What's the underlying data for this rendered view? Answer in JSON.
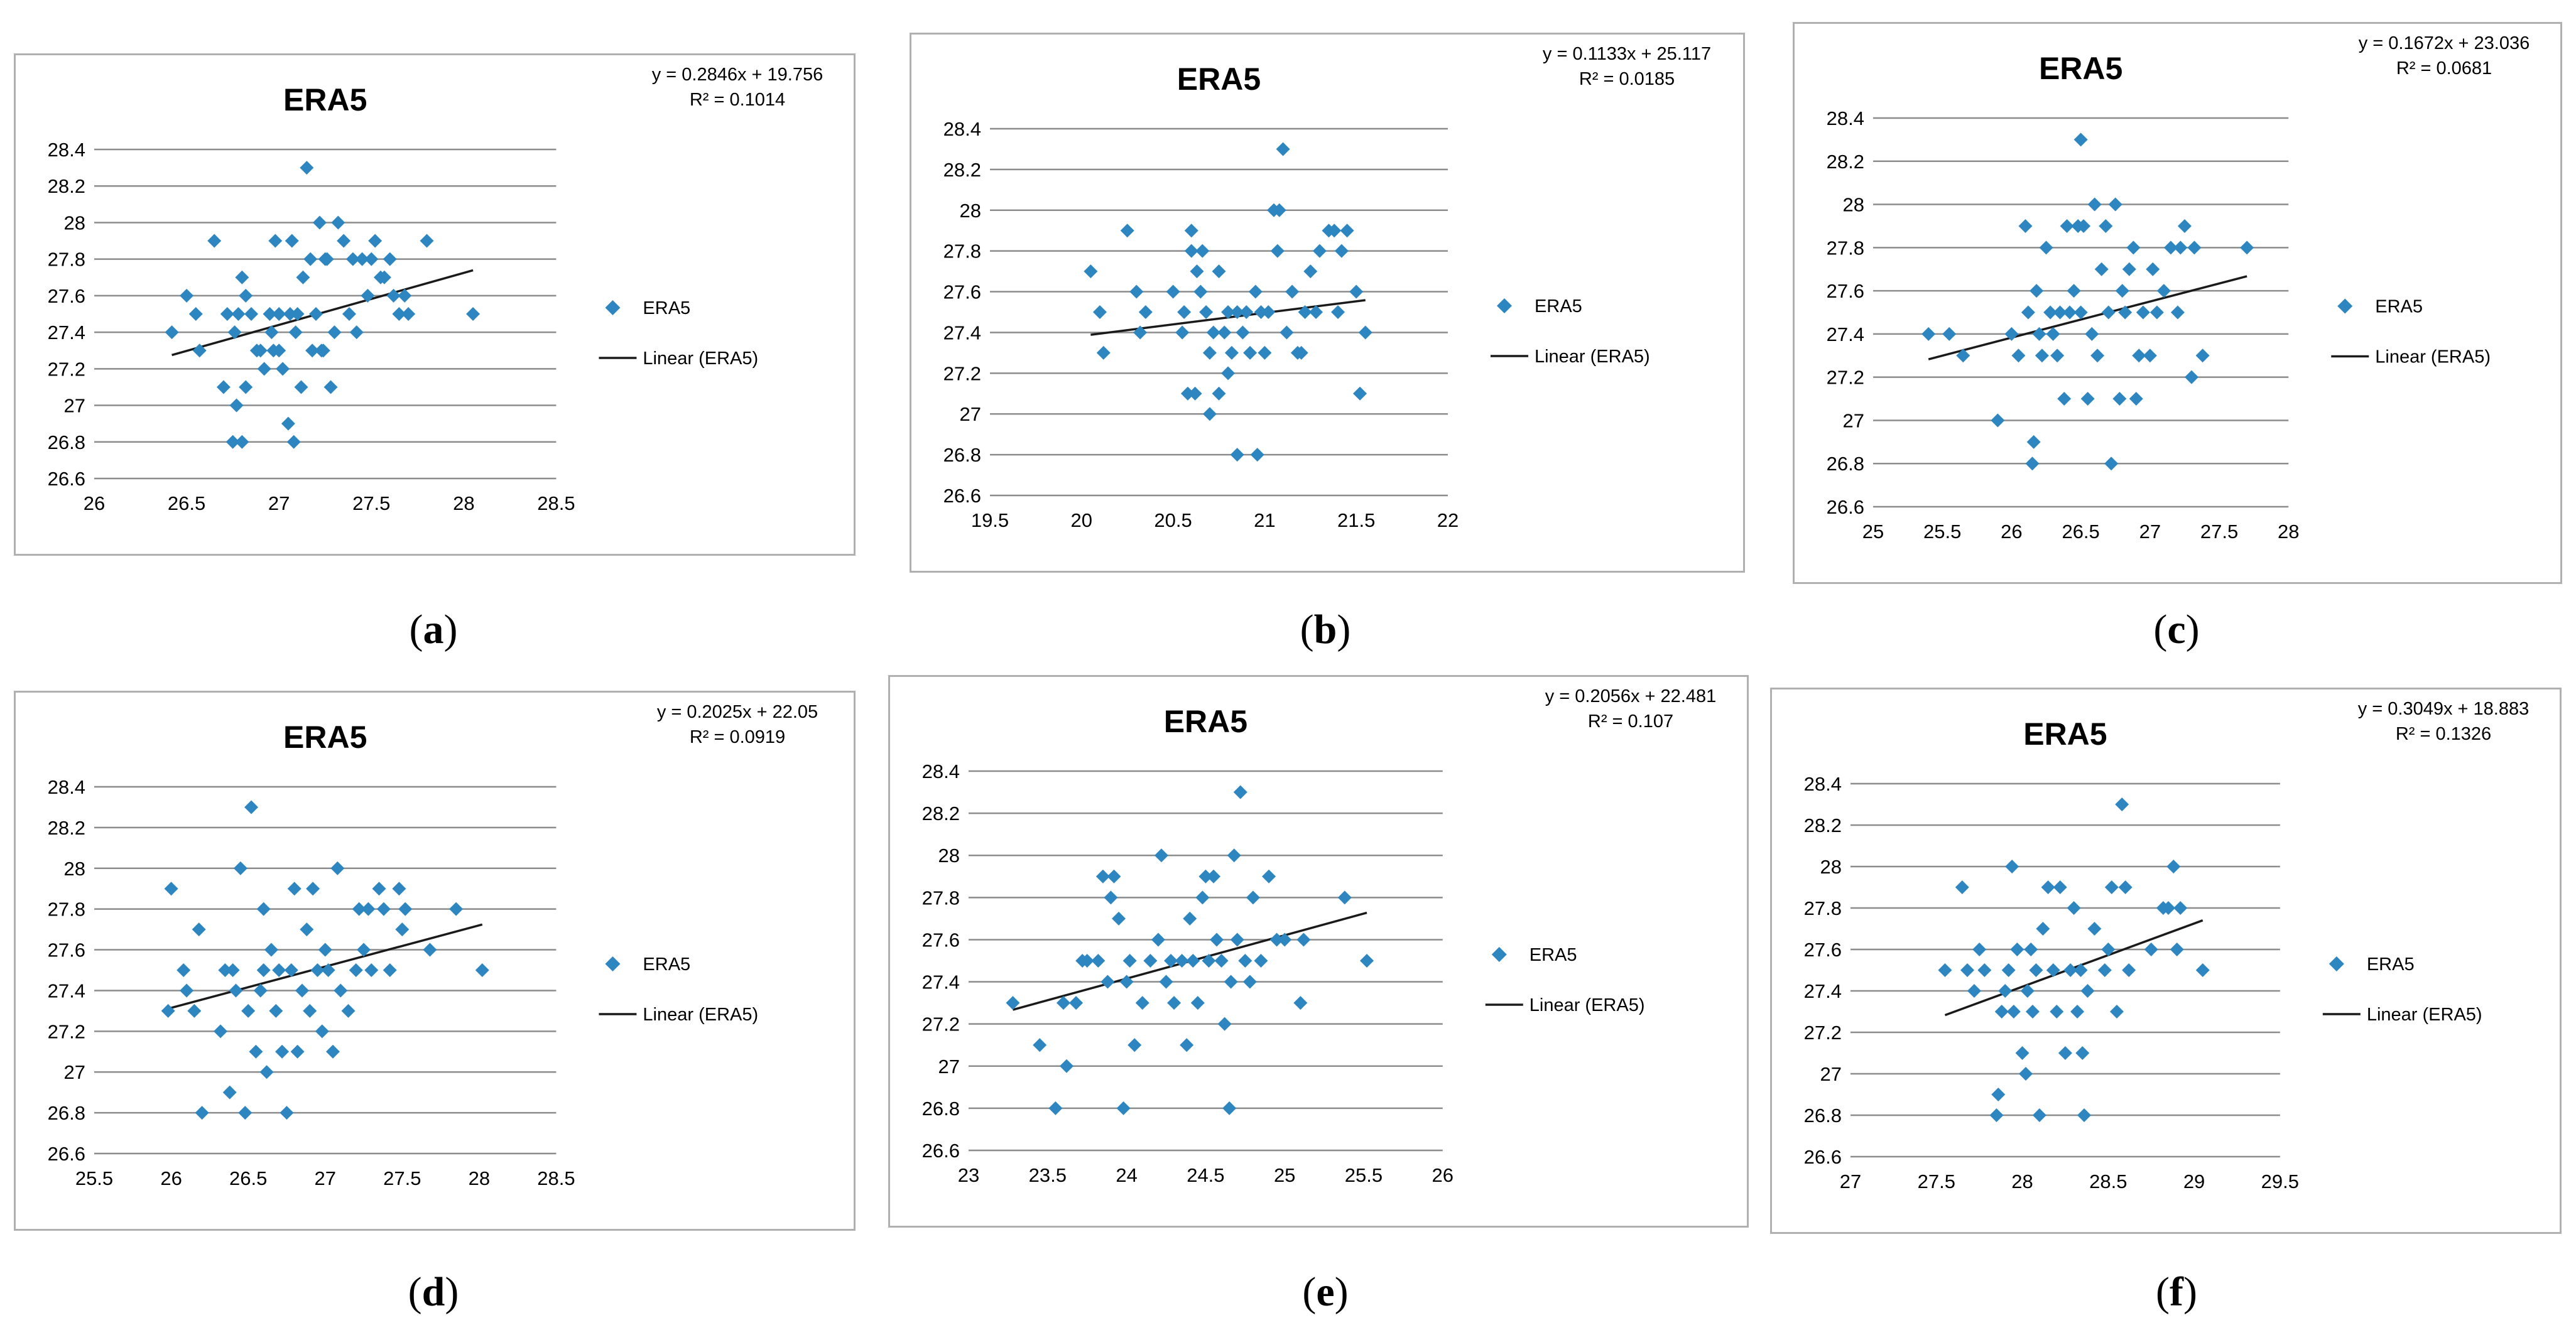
{
  "chart_data": [
    {
      "panel_label": "a",
      "type": "scatter",
      "title": "ERA5",
      "equation": "y = 0.2846x + 19.756",
      "r_squared": "R² = 0.1014",
      "legend": {
        "series": "ERA5",
        "trend": "Linear (ERA5)"
      },
      "color": "#2E86C1",
      "xlim": [
        26,
        28.5
      ],
      "ylim": [
        26.6,
        28.4
      ],
      "x_ticks": [
        "26",
        "26.5",
        "27",
        "27.5",
        "28",
        "28.5"
      ],
      "y_ticks": [
        "26.6",
        "26.8",
        "27",
        "27.2",
        "27.4",
        "27.6",
        "27.8",
        "28",
        "28.2",
        "28.4"
      ],
      "trend": {
        "slope": 0.2846,
        "intercept": 19.756,
        "x_range": [
          26.42,
          28.05
        ]
      },
      "x": [
        26.42,
        26.5,
        26.55,
        26.57,
        26.65,
        26.7,
        26.72,
        26.75,
        26.76,
        26.77,
        26.78,
        26.8,
        26.8,
        26.82,
        26.82,
        26.85,
        26.88,
        26.9,
        26.92,
        26.95,
        26.96,
        26.97,
        26.98,
        27.0,
        27.0,
        27.02,
        27.05,
        27.06,
        27.07,
        27.08,
        27.09,
        27.1,
        27.12,
        27.13,
        27.15,
        27.17,
        27.18,
        27.2,
        27.22,
        27.23,
        27.24,
        27.25,
        27.26,
        27.28,
        27.3,
        27.32,
        27.35,
        27.38,
        27.4,
        27.42,
        27.45,
        27.48,
        27.5,
        27.52,
        27.55,
        27.57,
        27.6,
        27.62,
        27.65,
        27.68,
        27.7,
        27.8,
        28.05
      ],
      "y": [
        27.4,
        27.6,
        27.5,
        27.3,
        27.9,
        27.1,
        27.5,
        26.8,
        27.4,
        27.0,
        27.5,
        27.7,
        26.8,
        27.6,
        27.1,
        27.5,
        27.3,
        27.3,
        27.2,
        27.5,
        27.4,
        27.3,
        27.9,
        27.5,
        27.3,
        27.2,
        26.9,
        27.5,
        27.9,
        26.8,
        27.4,
        27.5,
        27.1,
        27.7,
        28.3,
        27.8,
        27.3,
        27.5,
        28.0,
        27.3,
        27.3,
        27.8,
        27.8,
        27.1,
        27.4,
        28.0,
        27.9,
        27.5,
        27.8,
        27.4,
        27.8,
        27.6,
        27.8,
        27.9,
        27.7,
        27.7,
        27.8,
        27.6,
        27.5,
        27.6,
        27.5,
        27.9,
        27.5
      ]
    },
    {
      "panel_label": "b",
      "type": "scatter",
      "title": "ERA5",
      "equation": "y = 0.1133x + 25.117",
      "r_squared": "R² = 0.0185",
      "legend": {
        "series": "ERA5",
        "trend": "Linear (ERA5)"
      },
      "color": "#2E86C1",
      "xlim": [
        19.5,
        22
      ],
      "ylim": [
        26.6,
        28.4
      ],
      "x_ticks": [
        "19.5",
        "20",
        "20.5",
        "21",
        "21.5",
        "22"
      ],
      "y_ticks": [
        "26.6",
        "26.8",
        "27",
        "27.2",
        "27.4",
        "27.6",
        "27.8",
        "28",
        "28.2",
        "28.4"
      ],
      "trend": {
        "slope": 0.1133,
        "intercept": 25.117,
        "x_range": [
          20.05,
          21.55
        ]
      },
      "x": [
        20.05,
        20.1,
        20.12,
        20.25,
        20.3,
        20.32,
        20.35,
        20.5,
        20.55,
        20.56,
        20.58,
        20.6,
        20.6,
        20.62,
        20.63,
        20.65,
        20.66,
        20.68,
        20.7,
        20.7,
        20.72,
        20.75,
        20.75,
        20.78,
        20.8,
        20.8,
        20.82,
        20.85,
        20.85,
        20.88,
        20.9,
        20.92,
        20.95,
        20.96,
        20.98,
        21.0,
        21.02,
        21.05,
        21.07,
        21.08,
        21.1,
        21.12,
        21.15,
        21.18,
        21.2,
        21.22,
        21.25,
        21.28,
        21.3,
        21.35,
        21.38,
        21.4,
        21.42,
        21.45,
        21.5,
        21.52,
        21.55
      ],
      "y": [
        27.7,
        27.5,
        27.3,
        27.9,
        27.6,
        27.4,
        27.5,
        27.6,
        27.4,
        27.5,
        27.1,
        27.9,
        27.8,
        27.1,
        27.7,
        27.6,
        27.8,
        27.5,
        27.0,
        27.3,
        27.4,
        27.7,
        27.1,
        27.4,
        27.5,
        27.2,
        27.3,
        27.5,
        26.8,
        27.4,
        27.5,
        27.3,
        27.6,
        26.8,
        27.5,
        27.3,
        27.5,
        28.0,
        27.8,
        28.0,
        28.3,
        27.4,
        27.6,
        27.3,
        27.3,
        27.5,
        27.7,
        27.5,
        27.8,
        27.9,
        27.9,
        27.5,
        27.8,
        27.9,
        27.6,
        27.1,
        27.4
      ]
    },
    {
      "panel_label": "c",
      "type": "scatter",
      "title": "ERA5",
      "equation": "y = 0.1672x + 23.036",
      "r_squared": "R² = 0.0681",
      "legend": {
        "series": "ERA5",
        "trend": "Linear (ERA5)"
      },
      "color": "#2E86C1",
      "xlim": [
        25,
        28
      ],
      "ylim": [
        26.6,
        28.4
      ],
      "x_ticks": [
        "25",
        "25.5",
        "26",
        "26.5",
        "27",
        "27.5",
        "28"
      ],
      "y_ticks": [
        "26.6",
        "26.8",
        "27",
        "27.2",
        "27.4",
        "27.6",
        "27.8",
        "28",
        "28.2",
        "28.4"
      ],
      "trend": {
        "slope": 0.1672,
        "intercept": 23.036,
        "x_range": [
          25.4,
          27.7
        ]
      },
      "x": [
        25.4,
        25.55,
        25.65,
        25.9,
        26.0,
        26.05,
        26.1,
        26.12,
        26.15,
        26.16,
        26.18,
        26.2,
        26.22,
        26.25,
        26.28,
        26.3,
        26.33,
        26.35,
        26.38,
        26.4,
        26.42,
        26.45,
        26.48,
        26.5,
        26.5,
        26.52,
        26.55,
        26.58,
        26.6,
        26.62,
        26.65,
        26.68,
        26.7,
        26.72,
        26.75,
        26.78,
        26.8,
        26.82,
        26.85,
        26.88,
        26.9,
        26.92,
        26.95,
        27.0,
        27.02,
        27.05,
        27.1,
        27.15,
        27.2,
        27.22,
        27.25,
        27.3,
        27.32,
        27.38,
        27.7
      ],
      "y": [
        27.4,
        27.4,
        27.3,
        27.0,
        27.4,
        27.3,
        27.9,
        27.5,
        26.8,
        26.9,
        27.6,
        27.4,
        27.3,
        27.8,
        27.5,
        27.4,
        27.3,
        27.5,
        27.1,
        27.9,
        27.5,
        27.6,
        27.9,
        28.3,
        27.5,
        27.9,
        27.1,
        27.4,
        28.0,
        27.3,
        27.7,
        27.9,
        27.5,
        26.8,
        28.0,
        27.1,
        27.6,
        27.5,
        27.7,
        27.8,
        27.1,
        27.3,
        27.5,
        27.3,
        27.7,
        27.5,
        27.6,
        27.8,
        27.5,
        27.8,
        27.9,
        27.2,
        27.8,
        27.3,
        27.8
      ]
    },
    {
      "panel_label": "d",
      "type": "scatter",
      "title": "ERA5",
      "equation": "y = 0.2025x + 22.05",
      "r_squared": "R² = 0.0919",
      "legend": {
        "series": "ERA5",
        "trend": "Linear (ERA5)"
      },
      "color": "#2E86C1",
      "xlim": [
        25.5,
        28.5
      ],
      "ylim": [
        26.6,
        28.4
      ],
      "x_ticks": [
        "25.5",
        "26",
        "26.5",
        "27",
        "27.5",
        "28",
        "28.5"
      ],
      "y_ticks": [
        "26.6",
        "26.8",
        "27",
        "27.2",
        "27.4",
        "27.6",
        "27.8",
        "28",
        "28.2",
        "28.4"
      ],
      "trend": {
        "slope": 0.2025,
        "intercept": 22.05,
        "x_range": [
          25.98,
          28.02
        ]
      },
      "x": [
        25.98,
        26.0,
        26.08,
        26.1,
        26.15,
        26.18,
        26.2,
        26.32,
        26.35,
        26.38,
        26.4,
        26.42,
        26.45,
        26.48,
        26.5,
        26.52,
        26.55,
        26.58,
        26.6,
        26.6,
        26.62,
        26.65,
        26.68,
        26.7,
        26.72,
        26.75,
        26.78,
        26.8,
        26.82,
        26.85,
        26.88,
        26.9,
        26.92,
        26.95,
        26.98,
        27.0,
        27.02,
        27.05,
        27.08,
        27.1,
        27.15,
        27.2,
        27.22,
        27.25,
        27.28,
        27.3,
        27.35,
        27.38,
        27.42,
        27.48,
        27.5,
        27.52,
        27.68,
        27.85,
        28.02
      ],
      "y": [
        27.3,
        27.9,
        27.5,
        27.4,
        27.3,
        27.7,
        26.8,
        27.2,
        27.5,
        26.9,
        27.5,
        27.4,
        28.0,
        26.8,
        27.3,
        28.3,
        27.1,
        27.4,
        27.8,
        27.5,
        27.0,
        27.6,
        27.3,
        27.5,
        27.1,
        26.8,
        27.5,
        27.9,
        27.1,
        27.4,
        27.7,
        27.3,
        27.9,
        27.5,
        27.2,
        27.6,
        27.5,
        27.1,
        28.0,
        27.4,
        27.3,
        27.5,
        27.8,
        27.6,
        27.8,
        27.5,
        27.9,
        27.8,
        27.5,
        27.9,
        27.7,
        27.8,
        27.6,
        27.8,
        27.5
      ]
    },
    {
      "panel_label": "e",
      "type": "scatter",
      "title": "ERA5",
      "equation": "y = 0.2056x + 22.481",
      "r_squared": "R² = 0.107",
      "legend": {
        "series": "ERA5",
        "trend": "Linear (ERA5)"
      },
      "color": "#2E86C1",
      "xlim": [
        23,
        26
      ],
      "ylim": [
        26.6,
        28.4
      ],
      "x_ticks": [
        "23",
        "23.5",
        "24",
        "24.5",
        "25",
        "25.5",
        "26"
      ],
      "y_ticks": [
        "26.6",
        "26.8",
        "27",
        "27.2",
        "27.4",
        "27.6",
        "27.8",
        "28",
        "28.2",
        "28.4"
      ],
      "trend": {
        "slope": 0.2056,
        "intercept": 22.481,
        "x_range": [
          23.28,
          25.52
        ]
      },
      "x": [
        23.28,
        23.45,
        23.55,
        23.6,
        23.62,
        23.68,
        23.72,
        23.75,
        23.82,
        23.85,
        23.88,
        23.9,
        23.92,
        23.95,
        23.98,
        24.0,
        24.02,
        24.05,
        24.1,
        24.15,
        24.2,
        24.22,
        24.25,
        24.28,
        24.3,
        24.35,
        24.38,
        24.4,
        24.42,
        24.45,
        24.48,
        24.5,
        24.52,
        24.55,
        24.57,
        24.6,
        24.62,
        24.65,
        24.66,
        24.68,
        24.7,
        24.72,
        24.75,
        24.78,
        24.8,
        24.85,
        24.9,
        24.95,
        25.0,
        25.1,
        25.12,
        25.38,
        25.52
      ],
      "y": [
        27.3,
        27.1,
        26.8,
        27.3,
        27.0,
        27.3,
        27.5,
        27.5,
        27.5,
        27.9,
        27.4,
        27.8,
        27.9,
        27.7,
        26.8,
        27.4,
        27.5,
        27.1,
        27.3,
        27.5,
        27.6,
        28.0,
        27.4,
        27.5,
        27.3,
        27.5,
        27.1,
        27.7,
        27.5,
        27.3,
        27.8,
        27.9,
        27.5,
        27.9,
        27.6,
        27.5,
        27.2,
        26.8,
        27.4,
        28.0,
        27.6,
        28.3,
        27.5,
        27.4,
        27.8,
        27.5,
        27.9,
        27.6,
        27.6,
        27.3,
        27.6,
        27.8,
        27.5
      ]
    },
    {
      "panel_label": "f",
      "type": "scatter",
      "title": "ERA5",
      "equation": "y = 0.3049x + 18.883",
      "r_squared": "R² = 0.1326",
      "legend": {
        "series": "ERA5",
        "trend": "Linear (ERA5)"
      },
      "color": "#2E86C1",
      "xlim": [
        27,
        29.5
      ],
      "ylim": [
        26.6,
        28.4
      ],
      "x_ticks": [
        "27",
        "27.5",
        "28",
        "28.5",
        "29",
        "29.5"
      ],
      "y_ticks": [
        "26.6",
        "26.8",
        "27",
        "27.2",
        "27.4",
        "27.6",
        "27.8",
        "28",
        "28.2",
        "28.4"
      ],
      "trend": {
        "slope": 0.3049,
        "intercept": 18.883,
        "x_range": [
          27.55,
          29.05
        ]
      },
      "x": [
        27.55,
        27.65,
        27.68,
        27.72,
        27.75,
        27.78,
        27.85,
        27.86,
        27.88,
        27.9,
        27.92,
        27.94,
        27.95,
        27.97,
        28.0,
        28.02,
        28.03,
        28.05,
        28.06,
        28.08,
        28.1,
        28.12,
        28.15,
        28.18,
        28.2,
        28.22,
        28.25,
        28.28,
        28.3,
        28.32,
        28.34,
        28.35,
        28.36,
        28.38,
        28.42,
        28.48,
        28.5,
        28.52,
        28.55,
        28.58,
        28.6,
        28.62,
        28.75,
        28.82,
        28.85,
        28.88,
        28.9,
        28.92,
        29.05
      ],
      "y": [
        27.5,
        27.9,
        27.5,
        27.4,
        27.6,
        27.5,
        26.8,
        26.9,
        27.3,
        27.4,
        27.5,
        28.0,
        27.3,
        27.6,
        27.1,
        27.0,
        27.4,
        27.6,
        27.3,
        27.5,
        26.8,
        27.7,
        27.9,
        27.5,
        27.3,
        27.9,
        27.1,
        27.5,
        27.8,
        27.3,
        27.5,
        27.1,
        26.8,
        27.4,
        27.7,
        27.5,
        27.6,
        27.9,
        27.3,
        28.3,
        27.9,
        27.5,
        27.6,
        27.8,
        27.8,
        28.0,
        27.6,
        27.8,
        27.5
      ]
    }
  ]
}
